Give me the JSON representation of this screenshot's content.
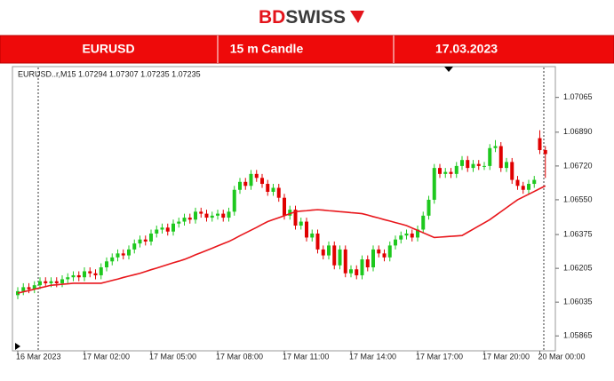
{
  "header": {
    "logo_part1": "BD",
    "logo_part2": "SWISS"
  },
  "banner": {
    "symbol": "EURUSD",
    "timeframe": "15 m Candle",
    "date": "17.03.2023"
  },
  "chart_data": {
    "type": "candlestick",
    "info_label": "EURUSD..r,M15  1.07294 1.07307 1.07235 1.07235",
    "up_color": "#1ec81e",
    "down_color": "#e00000",
    "ylim": [
      1.0579,
      1.0722
    ],
    "yticks": [
      1.05865,
      1.06035,
      1.06205,
      1.06375,
      {
        "value": 1.0655,
        "label": "1.06550"
      },
      {
        "value": 1.0672,
        "label": "1.06720"
      },
      {
        "value": 1.0689,
        "label": "1.06890"
      },
      1.07065
    ],
    "xticks": [
      {
        "value": 0,
        "label": "16 Mar 2023"
      },
      {
        "value": 12,
        "label": "17 Mar 02:00"
      },
      {
        "value": 24,
        "label": "17 Mar 05:00"
      },
      {
        "value": 36,
        "label": "17 Mar 08:00"
      },
      {
        "value": 48,
        "label": "17 Mar 11:00"
      },
      {
        "value": 60,
        "label": "17 Mar 14:00"
      },
      {
        "value": 72,
        "label": "17 Mar 17:00"
      },
      {
        "value": 84,
        "label": "17 Mar 20:00"
      },
      {
        "value": 94,
        "label": "20 Mar 00:00"
      }
    ],
    "ohlc": [
      [
        1.0607,
        1.0611,
        1.0605,
        1.0609
      ],
      [
        1.0609,
        1.0613,
        1.0607,
        1.0611
      ],
      [
        1.0611,
        1.0613,
        1.0608,
        1.061
      ],
      [
        1.061,
        1.0614,
        1.0608,
        1.0612
      ],
      [
        1.0612,
        1.0616,
        1.061,
        1.0614
      ],
      [
        1.0614,
        1.0616,
        1.0611,
        1.0613
      ],
      [
        1.0613,
        1.0616,
        1.0611,
        1.0614
      ],
      [
        1.0614,
        1.0616,
        1.0611,
        1.0613
      ],
      [
        1.0613,
        1.0617,
        1.0611,
        1.0615
      ],
      [
        1.0615,
        1.0618,
        1.0613,
        1.0616
      ],
      [
        1.0616,
        1.0619,
        1.0614,
        1.0617
      ],
      [
        1.0617,
        1.0619,
        1.0614,
        1.0616
      ],
      [
        1.0616,
        1.0621,
        1.0614,
        1.0619
      ],
      [
        1.0619,
        1.0621,
        1.0616,
        1.0618
      ],
      [
        1.0618,
        1.062,
        1.0615,
        1.0617
      ],
      [
        1.0617,
        1.0623,
        1.0615,
        1.0621
      ],
      [
        1.0621,
        1.0626,
        1.0619,
        1.0624
      ],
      [
        1.0624,
        1.0628,
        1.0622,
        1.0626
      ],
      [
        1.0626,
        1.063,
        1.0624,
        1.0628
      ],
      [
        1.0628,
        1.063,
        1.0625,
        1.0627
      ],
      [
        1.0627,
        1.0632,
        1.0625,
        1.063
      ],
      [
        1.063,
        1.0635,
        1.0628,
        1.0633
      ],
      [
        1.0633,
        1.0637,
        1.0631,
        1.0635
      ],
      [
        1.0635,
        1.0637,
        1.0632,
        1.0634
      ],
      [
        1.0634,
        1.064,
        1.0632,
        1.0638
      ],
      [
        1.0638,
        1.0642,
        1.0636,
        1.064
      ],
      [
        1.064,
        1.0643,
        1.0638,
        1.0641
      ],
      [
        1.0641,
        1.0643,
        1.0637,
        1.0639
      ],
      [
        1.0639,
        1.0645,
        1.0637,
        1.0643
      ],
      [
        1.0643,
        1.0646,
        1.0641,
        1.0644
      ],
      [
        1.0644,
        1.0648,
        1.0642,
        1.0646
      ],
      [
        1.0646,
        1.0648,
        1.0643,
        1.0645
      ],
      [
        1.0645,
        1.0651,
        1.0643,
        1.0649
      ],
      [
        1.0649,
        1.0651,
        1.0646,
        1.0648
      ],
      [
        1.0648,
        1.065,
        1.0644,
        1.0646
      ],
      [
        1.0646,
        1.0649,
        1.0644,
        1.0647
      ],
      [
        1.0647,
        1.065,
        1.0645,
        1.0648
      ],
      [
        1.0648,
        1.065,
        1.0644,
        1.0646
      ],
      [
        1.0646,
        1.0651,
        1.0644,
        1.0649
      ],
      [
        1.0649,
        1.0662,
        1.0647,
        1.066
      ],
      [
        1.066,
        1.0666,
        1.0658,
        1.0664
      ],
      [
        1.0664,
        1.0666,
        1.066,
        1.0662
      ],
      [
        1.0662,
        1.067,
        1.066,
        1.0668
      ],
      [
        1.0668,
        1.067,
        1.0664,
        1.0666
      ],
      [
        1.0666,
        1.0668,
        1.0661,
        1.0663
      ],
      [
        1.0663,
        1.0665,
        1.0657,
        1.0659
      ],
      [
        1.0659,
        1.0663,
        1.0657,
        1.0661
      ],
      [
        1.0661,
        1.0663,
        1.0654,
        1.0656
      ],
      [
        1.0656,
        1.0658,
        1.0645,
        1.0647
      ],
      [
        1.0647,
        1.0652,
        1.0645,
        1.065
      ],
      [
        1.065,
        1.0652,
        1.064,
        1.0642
      ],
      [
        1.0642,
        1.0646,
        1.064,
        1.0644
      ],
      [
        1.0644,
        1.0646,
        1.0634,
        1.0636
      ],
      [
        1.0636,
        1.064,
        1.0634,
        1.0638
      ],
      [
        1.0638,
        1.064,
        1.0628,
        1.063
      ],
      [
        1.063,
        1.0632,
        1.0625,
        1.0627
      ],
      [
        1.0627,
        1.0634,
        1.0625,
        1.0632
      ],
      [
        1.0632,
        1.0634,
        1.062,
        1.0622
      ],
      [
        1.0622,
        1.0632,
        1.062,
        1.063
      ],
      [
        1.063,
        1.0632,
        1.0616,
        1.0618
      ],
      [
        1.0618,
        1.0622,
        1.0616,
        1.062
      ],
      [
        1.062,
        1.0622,
        1.0615,
        1.0617
      ],
      [
        1.0617,
        1.0627,
        1.0615,
        1.0625
      ],
      [
        1.0625,
        1.0627,
        1.0619,
        1.0621
      ],
      [
        1.0621,
        1.0632,
        1.0619,
        1.063
      ],
      [
        1.063,
        1.0632,
        1.0626,
        1.0628
      ],
      [
        1.0628,
        1.063,
        1.0624,
        1.0626
      ],
      [
        1.0626,
        1.0634,
        1.0624,
        1.0632
      ],
      [
        1.0632,
        1.0637,
        1.063,
        1.0635
      ],
      [
        1.0635,
        1.0639,
        1.0633,
        1.0637
      ],
      [
        1.0637,
        1.064,
        1.0635,
        1.0638
      ],
      [
        1.0638,
        1.064,
        1.0634,
        1.0636
      ],
      [
        1.0636,
        1.0642,
        1.0634,
        1.064
      ],
      [
        1.064,
        1.0649,
        1.0638,
        1.0647
      ],
      [
        1.0647,
        1.0657,
        1.0645,
        1.0655
      ],
      [
        1.0655,
        1.0673,
        1.0653,
        1.0671
      ],
      [
        1.0671,
        1.0673,
        1.0666,
        1.0668
      ],
      [
        1.0668,
        1.0671,
        1.0666,
        1.0669
      ],
      [
        1.0669,
        1.0671,
        1.0666,
        1.0668
      ],
      [
        1.0668,
        1.0674,
        1.0666,
        1.0672
      ],
      [
        1.0672,
        1.0677,
        1.067,
        1.0675
      ],
      [
        1.0675,
        1.0677,
        1.0669,
        1.0671
      ],
      [
        1.0671,
        1.0675,
        1.0669,
        1.0673
      ],
      [
        1.0673,
        1.0675,
        1.067,
        1.0672
      ],
      [
        1.0672,
        1.0674,
        1.067,
        1.0672
      ],
      [
        1.0672,
        1.0683,
        1.067,
        1.0681
      ],
      [
        1.0681,
        1.0685,
        1.0679,
        1.0682
      ],
      [
        1.0682,
        1.0684,
        1.0669,
        1.0671
      ],
      [
        1.0671,
        1.0676,
        1.0669,
        1.0674
      ],
      [
        1.0674,
        1.0676,
        1.0663,
        1.0665
      ],
      [
        1.0665,
        1.0667,
        1.066,
        1.0662
      ],
      [
        1.0662,
        1.0664,
        1.0658,
        1.066
      ],
      [
        1.066,
        1.0665,
        1.0658,
        1.0663
      ],
      [
        1.0663,
        1.0667,
        1.0661,
        1.0665
      ],
      [
        1.0686,
        1.069,
        1.0678,
        1.068
      ],
      [
        1.068,
        1.0682,
        1.0666,
        1.0678
      ]
    ],
    "ma": {
      "color": "#e8161b",
      "values": [
        1.0608,
        1.06087,
        1.06093,
        1.061,
        1.06107,
        1.06113,
        1.0612,
        1.06122,
        1.06125,
        1.06127,
        1.0613,
        1.0613,
        1.0613,
        1.0613,
        1.0613,
        1.0613,
        1.06137,
        1.06144,
        1.06151,
        1.06159,
        1.06166,
        1.06173,
        1.0618,
        1.06189,
        1.06198,
        1.06206,
        1.06215,
        1.06224,
        1.06233,
        1.06241,
        1.0625,
        1.06261,
        1.06273,
        1.06284,
        1.06295,
        1.06306,
        1.06318,
        1.06329,
        1.0634,
        1.06354,
        1.06369,
        1.06383,
        1.06397,
        1.06411,
        1.06426,
        1.0644,
        1.0645,
        1.0646,
        1.0647,
        1.0648,
        1.0649,
        1.06493,
        1.06495,
        1.06498,
        1.065,
        1.06498,
        1.06495,
        1.06493,
        1.0649,
        1.06488,
        1.06485,
        1.06483,
        1.0648,
        1.06473,
        1.06465,
        1.06458,
        1.0645,
        1.06443,
        1.06435,
        1.06428,
        1.0642,
        1.06408,
        1.06396,
        1.06384,
        1.06372,
        1.0636,
        1.06362,
        1.06364,
        1.06366,
        1.06368,
        1.0637,
        1.06386,
        1.06402,
        1.06418,
        1.06434,
        1.0645,
        1.0647,
        1.0649,
        1.0651,
        1.0653,
        1.0655,
        1.06564,
        1.06578,
        1.06592,
        1.06606,
        1.0662
      ]
    }
  }
}
